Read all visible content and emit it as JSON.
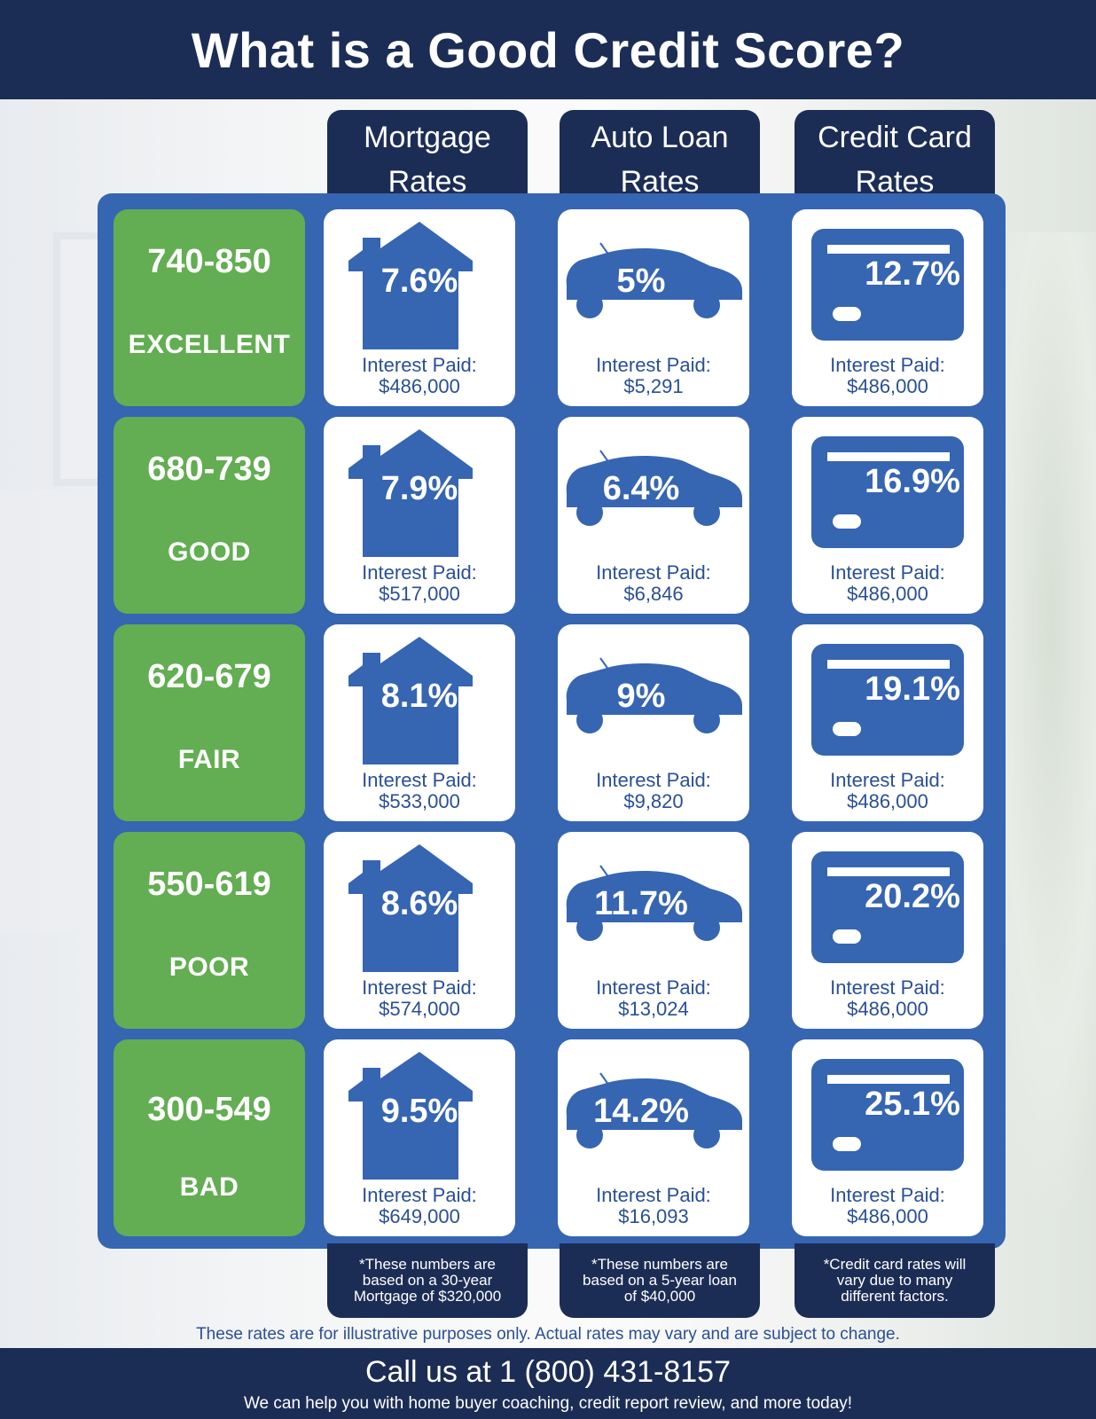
{
  "title": "What is a Good Credit Score?",
  "columns": [
    {
      "line1": "Mortgage",
      "line2": "Rates"
    },
    {
      "line1": "Auto Loan",
      "line2": "Rates"
    },
    {
      "line1": "Credit Card",
      "line2": "Rates"
    }
  ],
  "interest_label": "Interest Paid:",
  "rows": [
    {
      "range": "740-850",
      "label": "EXCELLENT",
      "mortgage": {
        "rate": "7.6%",
        "paid": "$486,000"
      },
      "auto": {
        "rate": "5%",
        "paid": "$5,291"
      },
      "card": {
        "rate": "12.7%",
        "paid": "$486,000"
      }
    },
    {
      "range": "680-739",
      "label": "GOOD",
      "mortgage": {
        "rate": "7.9%",
        "paid": "$517,000"
      },
      "auto": {
        "rate": "6.4%",
        "paid": "$6,846"
      },
      "card": {
        "rate": "16.9%",
        "paid": "$486,000"
      }
    },
    {
      "range": "620-679",
      "label": "FAIR",
      "mortgage": {
        "rate": "8.1%",
        "paid": "$533,000"
      },
      "auto": {
        "rate": "9%",
        "paid": "$9,820"
      },
      "card": {
        "rate": "19.1%",
        "paid": "$486,000"
      }
    },
    {
      "range": "550-619",
      "label": "POOR",
      "mortgage": {
        "rate": "8.6%",
        "paid": "$574,000"
      },
      "auto": {
        "rate": "11.7%",
        "paid": "$13,024"
      },
      "card": {
        "rate": "20.2%",
        "paid": "$486,000"
      }
    },
    {
      "range": "300-549",
      "label": "BAD",
      "mortgage": {
        "rate": "9.5%",
        "paid": "$649,000"
      },
      "auto": {
        "rate": "14.2%",
        "paid": "$16,093"
      },
      "card": {
        "rate": "25.1%",
        "paid": "$486,000"
      }
    }
  ],
  "footnotes": [
    [
      "*These numbers are",
      "based on a 30-year",
      "Mortgage of $320,000"
    ],
    [
      "*These numbers are",
      "based on a 5-year loan",
      "of $40,000"
    ],
    [
      "*Credit card rates will",
      "vary due to many",
      "different factors."
    ]
  ],
  "disclaimer": "These rates are for illustrative purposes only. Actual rates may vary and are subject to change.",
  "call": "Call us at 1 (800) 431-8157",
  "help": "We can help you with home buyer coaching, credit report review, and more today!",
  "colors": {
    "navy": "#1c2d55",
    "blue": "#3665b2",
    "green": "#63ad52"
  },
  "icons": [
    "house-icon",
    "car-icon",
    "credit-card-icon"
  ]
}
